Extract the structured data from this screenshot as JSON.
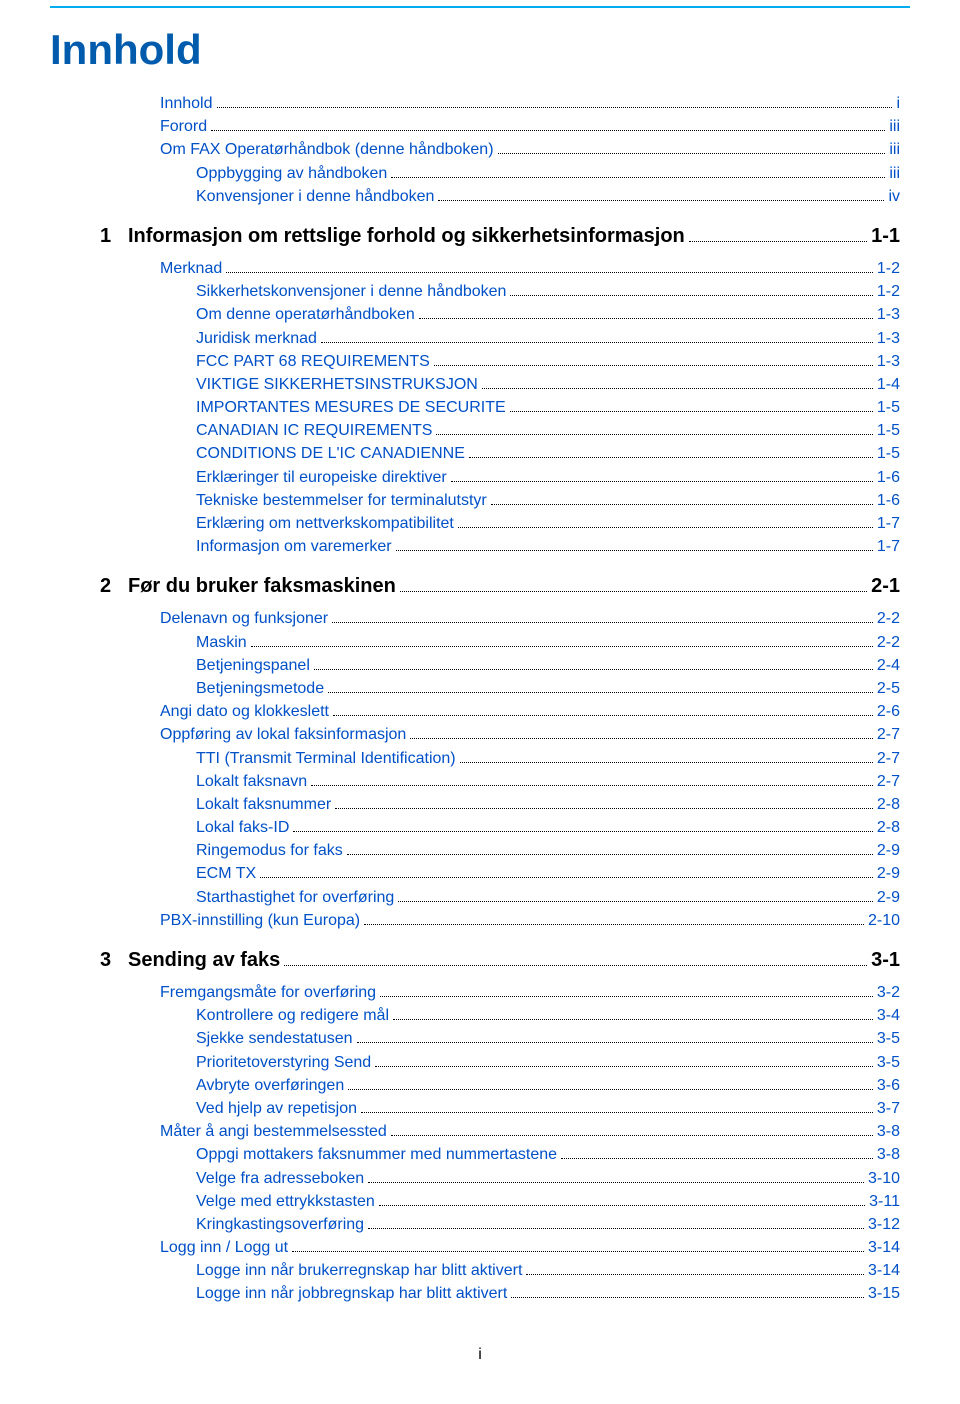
{
  "title": "Innhold",
  "colors": {
    "accent_rule": "#00aeef",
    "title": "#005bac",
    "link": "#0050c8",
    "text": "#000000",
    "background": "#ffffff"
  },
  "footer_page_number": "i",
  "front_matter": [
    {
      "label": "Innhold",
      "page": "i",
      "indent": 1,
      "link": true
    },
    {
      "label": "Forord",
      "page": "iii",
      "indent": 1,
      "link": true
    },
    {
      "label": "Om FAX Operatørhåndbok (denne håndboken)",
      "page": "iii",
      "indent": 1,
      "link": true
    },
    {
      "label": "Oppbygging av håndboken",
      "page": "iii",
      "indent": 2,
      "link": true
    },
    {
      "label": "Konvensjoner i denne håndboken",
      "page": "iv",
      "indent": 2,
      "link": true
    }
  ],
  "chapters": [
    {
      "num": "1",
      "heading": "Informasjon om rettslige forhold og sikkerhetsinformasjon",
      "heading_page": "1-1",
      "entries": [
        {
          "label": "Merknad",
          "page": "1-2",
          "indent": 1,
          "link": true
        },
        {
          "label": "Sikkerhetskonvensjoner i denne håndboken",
          "page": "1-2",
          "indent": 2,
          "link": true
        },
        {
          "label": "Om denne operatørhåndboken",
          "page": "1-3",
          "indent": 2,
          "link": true
        },
        {
          "label": "Juridisk merknad",
          "page": "1-3",
          "indent": 2,
          "link": true
        },
        {
          "label": "FCC PART 68 REQUIREMENTS",
          "page": "1-3",
          "indent": 2,
          "link": true
        },
        {
          "label": "VIKTIGE SIKKERHETSINSTRUKSJON",
          "page": "1-4",
          "indent": 2,
          "link": true
        },
        {
          "label": "IMPORTANTES MESURES DE SECURITE",
          "page": "1-5",
          "indent": 2,
          "link": true
        },
        {
          "label": "CANADIAN IC REQUIREMENTS",
          "page": "1-5",
          "indent": 2,
          "link": true
        },
        {
          "label": "CONDITIONS DE L'IC CANADIENNE",
          "page": "1-5",
          "indent": 2,
          "link": true
        },
        {
          "label": "Erklæringer til europeiske direktiver",
          "page": "1-6",
          "indent": 2,
          "link": true
        },
        {
          "label": "Tekniske bestemmelser for terminalutstyr",
          "page": "1-6",
          "indent": 2,
          "link": true
        },
        {
          "label": "Erklæring om nettverkskompatibilitet",
          "page": "1-7",
          "indent": 2,
          "link": true
        },
        {
          "label": "Informasjon om varemerker",
          "page": "1-7",
          "indent": 2,
          "link": true
        }
      ]
    },
    {
      "num": "2",
      "heading": "Før du bruker faksmaskinen",
      "heading_page": "2-1",
      "entries": [
        {
          "label": "Delenavn og funksjoner",
          "page": "2-2",
          "indent": 1,
          "link": true
        },
        {
          "label": "Maskin",
          "page": "2-2",
          "indent": 2,
          "link": true
        },
        {
          "label": "Betjeningspanel",
          "page": "2-4",
          "indent": 2,
          "link": true
        },
        {
          "label": "Betjeningsmetode",
          "page": "2-5",
          "indent": 2,
          "link": true
        },
        {
          "label": "Angi dato og klokkeslett",
          "page": "2-6",
          "indent": 1,
          "link": true
        },
        {
          "label": "Oppføring av lokal faksinformasjon",
          "page": "2-7",
          "indent": 1,
          "link": true
        },
        {
          "label": "TTI (Transmit Terminal Identification)",
          "page": "2-7",
          "indent": 2,
          "link": true
        },
        {
          "label": "Lokalt faksnavn",
          "page": "2-7",
          "indent": 2,
          "link": true
        },
        {
          "label": "Lokalt faksnummer",
          "page": "2-8",
          "indent": 2,
          "link": true
        },
        {
          "label": "Lokal faks-ID",
          "page": "2-8",
          "indent": 2,
          "link": true
        },
        {
          "label": "Ringemodus for faks",
          "page": "2-9",
          "indent": 2,
          "link": true
        },
        {
          "label": "ECM TX",
          "page": "2-9",
          "indent": 2,
          "link": true
        },
        {
          "label": "Starthastighet for overføring",
          "page": "2-9",
          "indent": 2,
          "link": true
        },
        {
          "label": "PBX-innstilling (kun Europa)",
          "page": "2-10",
          "indent": 1,
          "link": true
        }
      ]
    },
    {
      "num": "3",
      "heading": "Sending av faks",
      "heading_page": "3-1",
      "entries": [
        {
          "label": "Fremgangsmåte for overføring",
          "page": "3-2",
          "indent": 1,
          "link": true
        },
        {
          "label": "Kontrollere og redigere mål",
          "page": "3-4",
          "indent": 2,
          "link": true
        },
        {
          "label": "Sjekke sendestatusen",
          "page": "3-5",
          "indent": 2,
          "link": true
        },
        {
          "label": "Prioritetoverstyring Send",
          "page": "3-5",
          "indent": 2,
          "link": true
        },
        {
          "label": "Avbryte overføringen",
          "page": "3-6",
          "indent": 2,
          "link": true
        },
        {
          "label": "Ved hjelp av repetisjon",
          "page": "3-7",
          "indent": 2,
          "link": true
        },
        {
          "label": "Måter å angi bestemmelsessted",
          "page": "3-8",
          "indent": 1,
          "link": true
        },
        {
          "label": "Oppgi mottakers faksnummer med nummertastene",
          "page": "3-8",
          "indent": 2,
          "link": true
        },
        {
          "label": "Velge fra adresseboken",
          "page": "3-10",
          "indent": 2,
          "link": true
        },
        {
          "label": "Velge med ettrykkstasten",
          "page": "3-11",
          "indent": 2,
          "link": true
        },
        {
          "label": "Kringkastingsoverføring",
          "page": "3-12",
          "indent": 2,
          "link": true
        },
        {
          "label": "Logg inn / Logg ut",
          "page": "3-14",
          "indent": 1,
          "link": true
        },
        {
          "label": "Logge inn når brukerregnskap har blitt aktivert",
          "page": "3-14",
          "indent": 2,
          "link": true
        },
        {
          "label": "Logge inn når jobbregnskap har blitt aktivert",
          "page": "3-15",
          "indent": 2,
          "link": true
        }
      ]
    }
  ]
}
